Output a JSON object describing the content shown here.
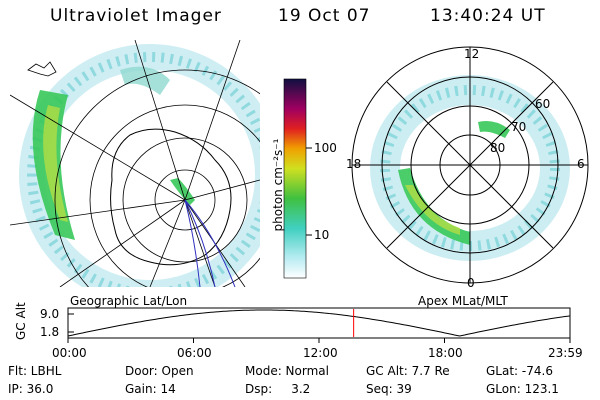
{
  "header": {
    "instrument": "Ultraviolet Imager",
    "date": "19 Oct 07",
    "time": "13:40:24 UT"
  },
  "left_panel": {
    "caption": "Geographic Lat/Lon"
  },
  "right_panel": {
    "caption": "Apex MLat/MLT",
    "mlt_labels": [
      "12",
      "18",
      "6",
      "0"
    ],
    "mlat_labels": [
      "60",
      "70",
      "80"
    ]
  },
  "colorbar": {
    "unit_label": "photon cm⁻²s⁻¹",
    "tick_labels": [
      "100",
      "10"
    ]
  },
  "orbit_plot": {
    "ylabel": "GC Alt",
    "y_ticks": [
      "9.0",
      "1.8"
    ],
    "x_ticks": [
      "00:00",
      "06:00",
      "12:00",
      "18:00",
      "23:59"
    ],
    "current_time_fraction": 0.569,
    "line_color": "#000000",
    "marker_color": "#ff0000"
  },
  "status": {
    "col1": [
      "Flt: LBHL",
      "IP: 36.0"
    ],
    "col2": [
      "Door: Open",
      "Gain: 14"
    ],
    "col3": [
      "Mode: Normal",
      "Dsp:     3.2"
    ],
    "col4": [
      "GC Alt: 7.7 Re",
      "Seq: 39"
    ],
    "col5": [
      "GLat: -74.6",
      "GLon: 123.1"
    ]
  }
}
